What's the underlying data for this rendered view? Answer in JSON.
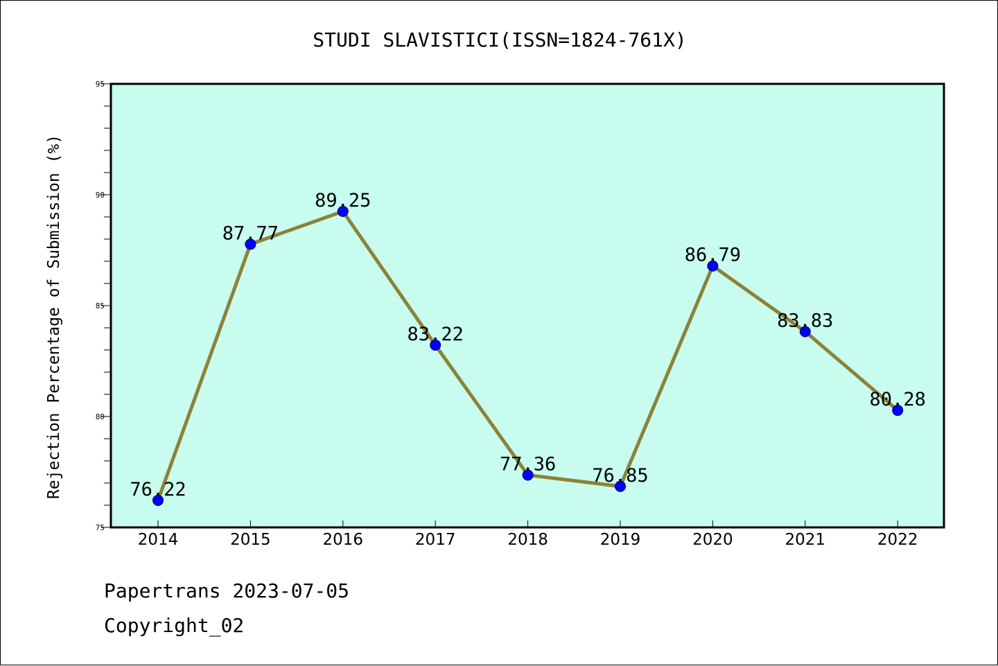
{
  "chart_data": {
    "type": "line",
    "title": "STUDI SLAVISTICI(ISSN=1824-761X)",
    "ylabel": "Rejection Percentage of Submission (%)",
    "xlabel": "",
    "categories": [
      "2014",
      "2015",
      "2016",
      "2017",
      "2018",
      "2019",
      "2020",
      "2021",
      "2022"
    ],
    "series": [
      {
        "values": [
          76.22,
          87.77,
          89.25,
          83.22,
          77.36,
          76.85,
          86.79,
          83.83,
          80.28
        ],
        "labels": [
          "76.22",
          "87.77",
          "89.25",
          "83.22",
          "77.36",
          "76.85",
          "86.79",
          "83.83",
          "80.28"
        ],
        "line_color": "#8b8239",
        "marker_color": "#0000ff"
      }
    ],
    "ylim": [
      75,
      95
    ],
    "yticks": [
      "75",
      "80",
      "85",
      "90",
      "95"
    ],
    "y_minor_step": 1,
    "plot_background": "#c8fcee",
    "grid": false,
    "legend": "none"
  },
  "footer": {
    "line1": "Papertrans 2023-07-05",
    "line2": "Copyright_02"
  }
}
